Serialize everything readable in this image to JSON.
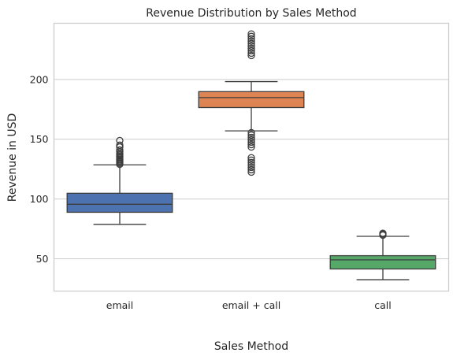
{
  "chart_data": {
    "type": "box",
    "title": "Revenue Distribution by Sales Method",
    "xlabel": "Sales Method",
    "ylabel": "Revenue in USD",
    "ylim": [
      23,
      247
    ],
    "yticks": [
      50,
      100,
      150,
      200
    ],
    "grid": "horizontal",
    "categories": [
      "email",
      "email + call",
      "call"
    ],
    "colors": [
      "#4c72b0",
      "#dd8452",
      "#55a868"
    ],
    "boxes": [
      {
        "category": "email",
        "whisker_low": 78.8,
        "q1": 88.9,
        "median": 95.6,
        "q3": 104.8,
        "whisker_high": 128.6,
        "outliers": [
          129.0,
          130.0,
          131.0,
          132.0,
          133.0,
          134.0,
          135.0,
          136.0,
          137.0,
          138.0,
          139.5,
          141.0,
          143.5,
          145.0,
          148.9
        ]
      },
      {
        "category": "email + call",
        "whisker_low": 157.0,
        "q1": 176.5,
        "median": 184.8,
        "q3": 189.8,
        "whisker_high": 198.2,
        "outliers": [
          122.5,
          124.5,
          126.5,
          128.5,
          130.5,
          132.5,
          134.5,
          143.5,
          145.5,
          147.5,
          149.5,
          151.5,
          153.5,
          155.5,
          220.0,
          222.0,
          224.0,
          226.0,
          228.0,
          230.0,
          232.0,
          234.0,
          236.0,
          238.0
        ]
      },
      {
        "category": "call",
        "whisker_low": 32.5,
        "q1": 41.5,
        "median": 49.1,
        "q3": 52.6,
        "whisker_high": 68.8,
        "outliers": [
          69.8,
          70.6,
          71.3
        ]
      }
    ]
  }
}
